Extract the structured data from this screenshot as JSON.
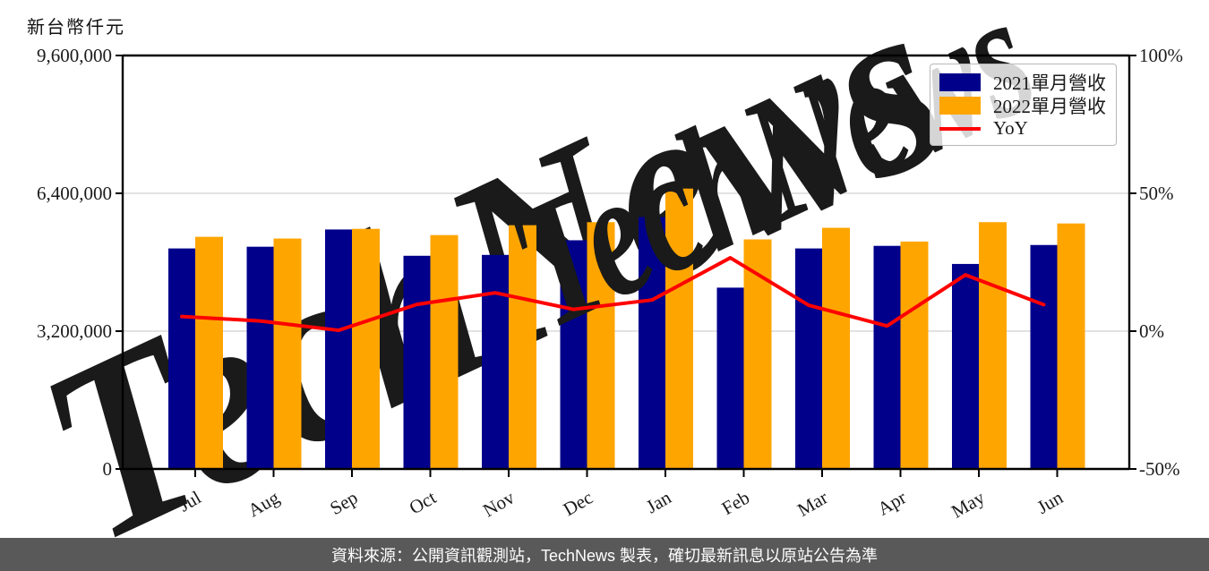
{
  "page": {
    "unit_label": "新台幣仟元",
    "source_note": "資料來源：公開資訊觀測站，TechNews 製表，確切最新訊息以原站公告為準",
    "watermark_text": "TechNews"
  },
  "colors": {
    "bar_2021": "#00008B",
    "bar_2022": "#FFA500",
    "yoy_line": "#FF0000",
    "grid_line": "#d9d9d9",
    "axis_line": "#000000",
    "watermark_gray": "rgba(130,130,130,0.22)",
    "watermark_pink": "rgba(235,130,125,0.25)",
    "source_bar_bg": "#595959",
    "source_bar_text": "#ffffff"
  },
  "legend": {
    "items": [
      {
        "label": "2021單月營收",
        "color": "#00008B",
        "type": "box"
      },
      {
        "label": "2022單月營收",
        "color": "#FFA500",
        "type": "box"
      },
      {
        "label": "YoY",
        "color": "#FF0000",
        "type": "line"
      }
    ]
  },
  "chart_data": {
    "type": "bar",
    "title": "",
    "categories": [
      "Jul",
      "Aug",
      "Sep",
      "Oct",
      "Nov",
      "Dec",
      "Jan",
      "Feb",
      "Mar",
      "Apr",
      "May",
      "Jun"
    ],
    "series": [
      {
        "name": "2021單月營收",
        "kind": "bar",
        "axis": "left",
        "color": "#00008B",
        "values": [
          5120000,
          5160000,
          5560000,
          4950000,
          4970000,
          5310000,
          5850000,
          4210000,
          5120000,
          5180000,
          4760000,
          5200000
        ]
      },
      {
        "name": "2022單月營收",
        "kind": "bar",
        "axis": "left",
        "color": "#FFA500",
        "values": [
          5390000,
          5350000,
          5575000,
          5430000,
          5660000,
          5730000,
          6510000,
          5330000,
          5600000,
          5280000,
          5730000,
          5700000
        ]
      },
      {
        "name": "YoY",
        "kind": "line",
        "axis": "right",
        "color": "#FF0000",
        "unit": "%",
        "values": [
          5.3,
          3.7,
          0.3,
          9.7,
          13.9,
          7.9,
          11.3,
          26.6,
          9.4,
          1.9,
          20.4,
          9.6
        ]
      }
    ],
    "left_axis": {
      "label": "新台幣仟元",
      "tick_labels": [
        "9,600,000",
        "6,400,000",
        "3,200,000",
        "0"
      ],
      "tick_values": [
        9600000,
        6400000,
        3200000,
        0
      ],
      "min": 0,
      "max": 9600000
    },
    "right_axis": {
      "tick_labels": [
        "100%",
        "50%",
        "0%",
        "-50%"
      ],
      "tick_values": [
        100,
        50,
        0,
        -50
      ],
      "min": -50,
      "max": 100
    },
    "grid": true,
    "legend_position": "top-right"
  }
}
